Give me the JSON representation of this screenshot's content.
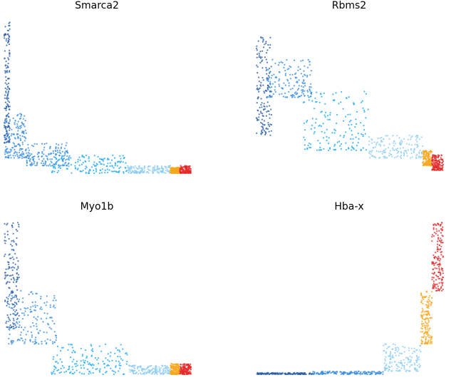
{
  "colors": {
    "dark_blue": "#2b5fa8",
    "mid_blue": "#3b8ee0",
    "bright_blue": "#1aa7f5",
    "light_blue": "#8ecdf0",
    "orange": "#f6a81d",
    "red": "#e52a2a"
  },
  "chart_data": [
    {
      "type": "scatter",
      "title": "Smarca2",
      "xlabel": "",
      "ylabel": "",
      "axes_visible": false,
      "grid": false,
      "point_groups": [
        {
          "color": "dark_blue",
          "x": [
            0.0,
            0.03
          ],
          "y": [
            0.2,
            1.0
          ]
        },
        {
          "color": "mid_blue",
          "x": [
            0.0,
            0.12
          ],
          "y": [
            0.1,
            0.4
          ]
        },
        {
          "color": "mid_blue",
          "x": [
            0.12,
            0.35
          ],
          "y": [
            0.05,
            0.2
          ]
        },
        {
          "color": "bright_blue",
          "x": [
            0.25,
            0.66
          ],
          "y": [
            0.0,
            0.12
          ]
        },
        {
          "color": "light_blue",
          "x": [
            0.66,
            0.89
          ],
          "y": [
            0.0,
            0.05
          ]
        },
        {
          "color": "orange",
          "x": [
            0.89,
            0.94
          ],
          "y": [
            0.0,
            0.04
          ]
        },
        {
          "color": "red",
          "x": [
            0.94,
            1.0
          ],
          "y": [
            0.0,
            0.05
          ]
        }
      ]
    },
    {
      "type": "scatter",
      "title": "Rbms2",
      "xlabel": "",
      "ylabel": "",
      "axes_visible": false,
      "grid": false,
      "point_groups": [
        {
          "color": "dark_blue",
          "x": [
            0.0,
            0.08
          ],
          "y": [
            0.25,
            0.9
          ]
        },
        {
          "color": "mid_blue",
          "x": [
            0.05,
            0.3
          ],
          "y": [
            0.5,
            0.75
          ]
        },
        {
          "color": "bright_blue",
          "x": [
            0.25,
            0.6
          ],
          "y": [
            0.15,
            0.55
          ]
        },
        {
          "color": "light_blue",
          "x": [
            0.6,
            0.89
          ],
          "y": [
            0.1,
            0.25
          ]
        },
        {
          "color": "orange",
          "x": [
            0.89,
            0.94
          ],
          "y": [
            0.05,
            0.15
          ]
        },
        {
          "color": "red",
          "x": [
            0.94,
            1.0
          ],
          "y": [
            0.02,
            0.12
          ]
        }
      ]
    },
    {
      "type": "scatter",
      "title": "Myo1b",
      "xlabel": "",
      "ylabel": "",
      "axes_visible": false,
      "grid": false,
      "point_groups": [
        {
          "color": "dark_blue",
          "x": [
            0.0,
            0.08
          ],
          "y": [
            0.3,
            1.0
          ]
        },
        {
          "color": "mid_blue",
          "x": [
            0.02,
            0.28
          ],
          "y": [
            0.2,
            0.55
          ]
        },
        {
          "color": "bright_blue",
          "x": [
            0.25,
            0.66
          ],
          "y": [
            0.0,
            0.2
          ]
        },
        {
          "color": "light_blue",
          "x": [
            0.66,
            0.89
          ],
          "y": [
            0.0,
            0.06
          ]
        },
        {
          "color": "orange",
          "x": [
            0.89,
            0.94
          ],
          "y": [
            0.0,
            0.07
          ]
        },
        {
          "color": "red",
          "x": [
            0.94,
            1.0
          ],
          "y": [
            0.0,
            0.07
          ]
        }
      ]
    },
    {
      "type": "scatter",
      "title": "Hba-x",
      "xlabel": "",
      "ylabel": "",
      "axes_visible": false,
      "grid": false,
      "point_groups": [
        {
          "color": "dark_blue",
          "x": [
            0.0,
            0.3
          ],
          "y": [
            0.0,
            0.01
          ]
        },
        {
          "color": "mid_blue",
          "x": [
            0.3,
            0.68
          ],
          "y": [
            0.0,
            0.02
          ]
        },
        {
          "color": "light_blue",
          "x": [
            0.68,
            0.88
          ],
          "y": [
            0.02,
            0.2
          ]
        },
        {
          "color": "orange",
          "x": [
            0.88,
            0.94
          ],
          "y": [
            0.2,
            0.55
          ]
        },
        {
          "color": "red",
          "x": [
            0.94,
            1.0
          ],
          "y": [
            0.55,
            1.0
          ]
        }
      ]
    }
  ]
}
